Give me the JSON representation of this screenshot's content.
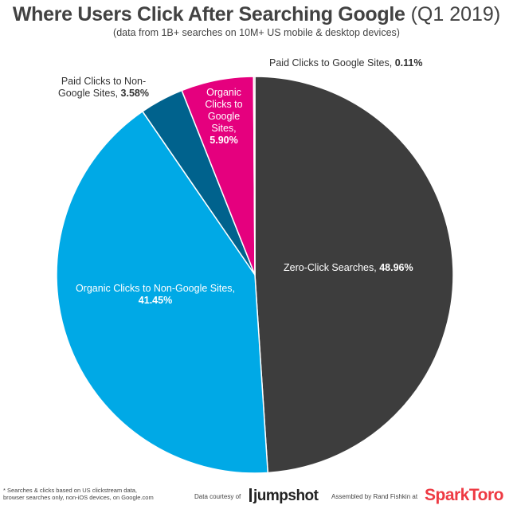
{
  "header": {
    "title_main": "Where Users Click After Searching Google",
    "title_sub": "(Q1 2019)",
    "subtitle": "(data from 1B+ searches on 10M+ US mobile & desktop devices)"
  },
  "footer": {
    "footnote_line1": "* Searches & clicks based on US clickstream data,",
    "footnote_line2": "browser searches only, non-iOS devices, on Google.com",
    "courtesy": "Data courtesy of",
    "jumpshot_logo": "jumpshot",
    "assembled": "Assembled by Rand Fishkin at",
    "sparktoro_logo_a": "Spark",
    "sparktoro_logo_b": "Toro"
  },
  "colors": {
    "zero_click": "#3d3d3d",
    "organic_non_google": "#00a9e6",
    "paid_non_google": "#00628d",
    "organic_google": "#e5007e",
    "paid_google": "#a8a8a8"
  },
  "chart_data": {
    "type": "pie",
    "title": "Where Users Click After Searching Google (Q1 2019)",
    "subtitle": "(data from 1B+ searches on 10M+ US mobile & desktop devices)",
    "start_angle_deg": 0,
    "direction": "clockwise",
    "slices": [
      {
        "label": "Zero-Click Searches",
        "value": 48.96,
        "value_label": "48.96%",
        "color": "#3d3d3d"
      },
      {
        "label": "Organic Clicks to Non-Google Sites",
        "value": 41.45,
        "value_label": "41.45%",
        "color": "#00a9e6"
      },
      {
        "label": "Paid Clicks to Non-Google Sites",
        "value": 3.58,
        "value_label": "3.58%",
        "color": "#00628d"
      },
      {
        "label": "Organic Clicks to Google Sites",
        "value": 5.9,
        "value_label": "5.90%",
        "color": "#e5007e"
      },
      {
        "label": "Paid Clicks to Google Sites",
        "value": 0.11,
        "value_label": "0.11%",
        "color": "#a8a8a8"
      }
    ]
  }
}
